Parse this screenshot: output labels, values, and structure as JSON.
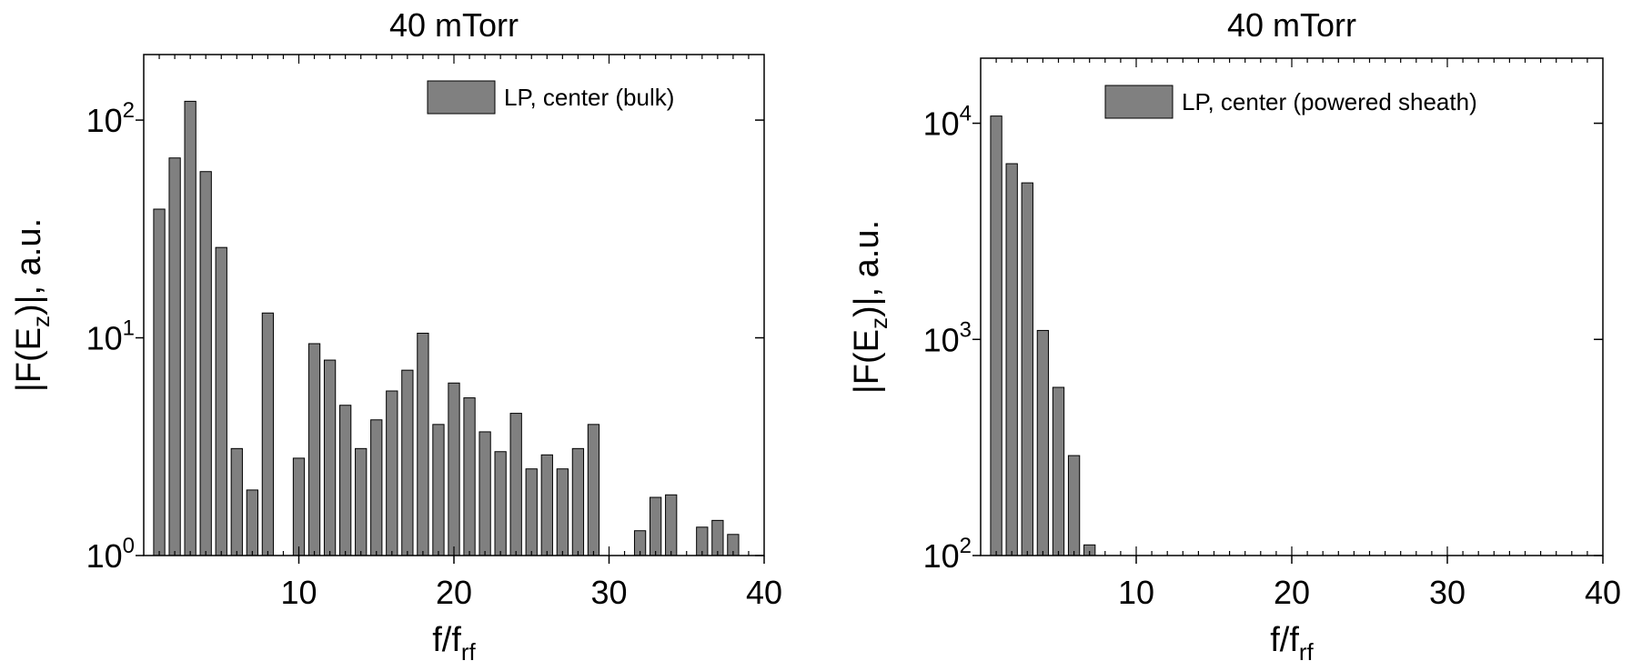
{
  "colors": {
    "bar_fill": "#808080",
    "bar_stroke": "#000000",
    "axis": "#000000",
    "background": "#ffffff"
  },
  "chart_data": [
    {
      "type": "bar",
      "title": "40 mTorr",
      "xlabel": {
        "main": "f/f",
        "sub": "rf"
      },
      "ylabel": {
        "prefix": "|F(E",
        "sub": "z",
        "suffix": ")|, a.u."
      },
      "xlim": [
        0,
        40
      ],
      "ylim": [
        1,
        200
      ],
      "yscale": "log",
      "xticks": [
        10,
        20,
        30,
        40
      ],
      "xtick_labels": [
        "10",
        "20",
        "30",
        "40"
      ],
      "yticks": [
        1,
        10,
        100
      ],
      "ytick_labels": [
        {
          "base": "10",
          "exp": "0"
        },
        {
          "base": "10",
          "exp": "1"
        },
        {
          "base": "10",
          "exp": "2"
        }
      ],
      "legend": {
        "label": "LP, center (bulk)",
        "position": "top-right"
      },
      "x": [
        1,
        2,
        3,
        4,
        5,
        6,
        7,
        8,
        9,
        10,
        11,
        12,
        13,
        14,
        15,
        16,
        17,
        18,
        19,
        20,
        21,
        22,
        23,
        24,
        25,
        26,
        27,
        28,
        29,
        30,
        31,
        32,
        33,
        34,
        35,
        36,
        37,
        38
      ],
      "values": [
        39,
        67,
        122,
        58,
        26,
        3.1,
        2.0,
        13,
        null,
        2.8,
        9.4,
        7.9,
        4.9,
        3.1,
        4.2,
        5.7,
        7.1,
        10.5,
        4.0,
        6.2,
        5.3,
        3.7,
        3.0,
        4.5,
        2.5,
        2.9,
        2.5,
        3.1,
        4.0,
        null,
        null,
        1.3,
        1.85,
        1.9,
        null,
        1.35,
        1.45,
        1.25
      ]
    },
    {
      "type": "bar",
      "title": "40 mTorr",
      "xlabel": {
        "main": "f/f",
        "sub": "rf"
      },
      "ylabel": {
        "prefix": "|F(E",
        "sub": "z",
        "suffix": ")|, a.u."
      },
      "xlim": [
        0,
        40
      ],
      "ylim": [
        100,
        20000
      ],
      "yscale": "log",
      "xticks": [
        10,
        20,
        30,
        40
      ],
      "xtick_labels": [
        "10",
        "20",
        "30",
        "40"
      ],
      "yticks": [
        100,
        1000,
        10000
      ],
      "ytick_labels": [
        {
          "base": "10",
          "exp": "2"
        },
        {
          "base": "10",
          "exp": "3"
        },
        {
          "base": "10",
          "exp": "4"
        }
      ],
      "legend": {
        "label": "LP, center (powered sheath)",
        "position": "top-right"
      },
      "x": [
        1,
        2,
        3,
        4,
        5,
        6,
        7
      ],
      "values": [
        10800,
        6500,
        5300,
        1100,
        600,
        290,
        112
      ]
    }
  ]
}
